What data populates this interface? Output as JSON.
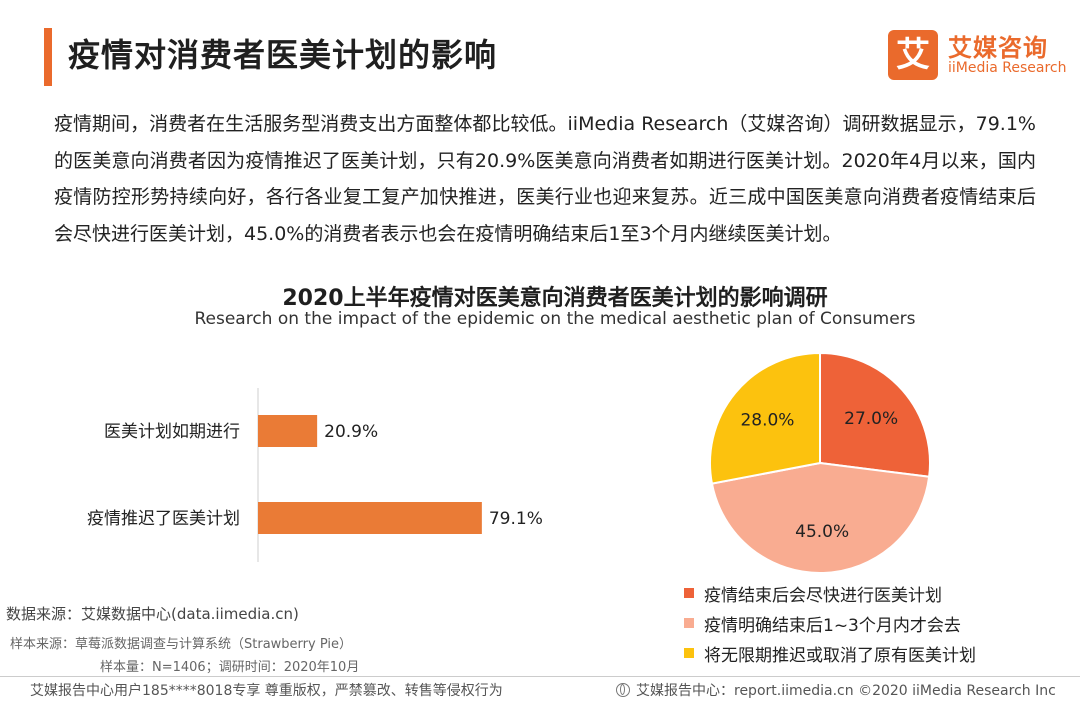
{
  "header": {
    "title": "疫情对消费者医美计划的影响",
    "logo_mark": "艾",
    "logo_cn": "艾媒咨询",
    "logo_en": "iiMedia Research"
  },
  "paragraph": "疫情期间，消费者在生活服务型消费支出方面整体都比较低。iiMedia Research（艾媒咨询）调研数据显示，79.1%的医美意向消费者因为疫情推迟了医美计划，只有20.9%医美意向消费者如期进行医美计划。2020年4月以来，国内疫情防控形势持续向好，各行各业复工复产加快推进，医美行业也迎来复苏。近三成中国医美意向消费者疫情结束后会尽快进行医美计划，45.0%的消费者表示也会在疫情明确结束后1至3个月内继续医美计划。",
  "chart": {
    "title": "2020上半年疫情对医美意向消费者医美计划的影响调研",
    "subtitle": "Research on the impact of the epidemic on the medical aesthetic plan of Consumers"
  },
  "chart_data": [
    {
      "type": "bar",
      "orientation": "horizontal",
      "categories": [
        "医美计划如期进行",
        "疫情推迟了医美计划"
      ],
      "values": [
        20.9,
        79.1
      ],
      "value_labels": [
        "20.9%",
        "79.1%"
      ],
      "unit": "%",
      "color": "#ea7b36",
      "grid": false
    },
    {
      "type": "pie",
      "labels": [
        "疫情结束后会尽快进行医美计划",
        "疫情明确结束后1~3个月内才会去",
        "将无限期推迟或取消了原有医美计划"
      ],
      "values": [
        27.0,
        45.0,
        28.0
      ],
      "value_labels": [
        "27.0%",
        "45.0%",
        "28.0%"
      ],
      "colors": [
        "#ee6238",
        "#f9ac91",
        "#fcc20e"
      ],
      "legend_position": "bottom"
    }
  ],
  "source": {
    "line1": "数据来源：艾媒数据中心(data.iimedia.cn)",
    "line2": "样本来源：草莓派数据调查与计算系统（Strawberry Pie）",
    "line3": "样本量：N=1406；调研时间：2020年10月"
  },
  "footer": {
    "left": "艾媒报告中心用户185****8018专享 尊重版权，严禁篡改、转售等侵权行为",
    "right": "艾媒报告中心：report.iimedia.cn  ©2020  iiMedia Research  Inc"
  }
}
